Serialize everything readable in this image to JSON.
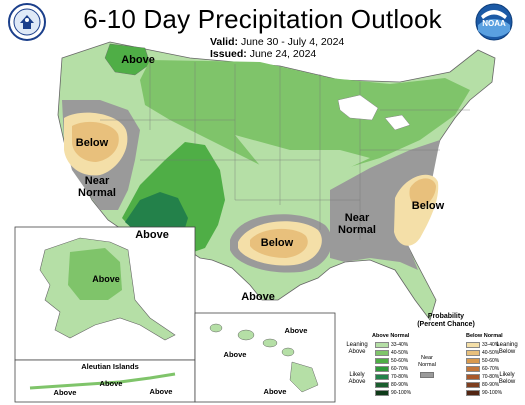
{
  "header": {
    "title": "6-10 Day Precipitation Outlook",
    "valid_label": "Valid:",
    "valid_value": "June 30 - July 4, 2024",
    "issued_label": "Issued:",
    "issued_value": "June 24, 2024",
    "noaa_text": "NOAA"
  },
  "regions": {
    "conus": [
      {
        "id": "northwest-above",
        "label": "Above",
        "category": "above_40_50"
      },
      {
        "id": "california-below",
        "label": "Below",
        "category": "below_40_50"
      },
      {
        "id": "nevada-near-normal",
        "label": "Near\nNormal",
        "category": "near_normal"
      },
      {
        "id": "southwest-above",
        "label": "Above",
        "category": "above_70_80"
      },
      {
        "id": "texas-below",
        "label": "Below",
        "category": "below_40_50"
      },
      {
        "id": "southeast-near-normal",
        "label": "Near\nNormal",
        "category": "near_normal"
      },
      {
        "id": "carolinas-below",
        "label": "Below",
        "category": "below_40_50"
      },
      {
        "id": "south-texas-above",
        "label": "Above",
        "category": "above_33_40"
      }
    ],
    "alaska": {
      "label": "Above",
      "category": "above_40_50"
    },
    "aleutian": {
      "title": "Aleutian Islands",
      "labels": [
        "Above",
        "Above",
        "Above"
      ]
    },
    "hawaii": {
      "labels": [
        "Above",
        "Above",
        "Above"
      ]
    }
  },
  "legend": {
    "title": "Probability\n(Percent Chance)",
    "above_title": "Above Normal",
    "below_title": "Below Normal",
    "near_normal_label": "Near\nNormal",
    "leaning_above": "Leaning\nAbove",
    "likely_above": "Likely\nAbove",
    "leaning_below": "Leaning\nBelow",
    "likely_below": "Likely\nBelow",
    "above_bins": [
      {
        "range": "33-40%",
        "color": "#b5dfa6"
      },
      {
        "range": "40-50%",
        "color": "#7fc46a"
      },
      {
        "range": "50-60%",
        "color": "#4fae46"
      },
      {
        "range": "60-70%",
        "color": "#2f9a3a"
      },
      {
        "range": "70-80%",
        "color": "#23814a"
      },
      {
        "range": "80-90%",
        "color": "#1a5e2e"
      },
      {
        "range": "90-100%",
        "color": "#0e3a18"
      }
    ],
    "below_bins": [
      {
        "range": "33-40%",
        "color": "#f4dfa8"
      },
      {
        "range": "40-50%",
        "color": "#e8c07c"
      },
      {
        "range": "50-60%",
        "color": "#d99a4e"
      },
      {
        "range": "60-70%",
        "color": "#c4773a"
      },
      {
        "range": "70-80%",
        "color": "#a8582a"
      },
      {
        "range": "80-90%",
        "color": "#7e3e1e"
      },
      {
        "range": "90-100%",
        "color": "#522512"
      }
    ],
    "near_normal_color": "#9a9a9a"
  },
  "colors": {
    "above_33_40": "#b5dfa6",
    "above_40_50": "#7fc46a",
    "above_50_60": "#4fae46",
    "above_70_80": "#23814a",
    "below_33_40": "#f4dfa8",
    "below_40_50": "#e8c07c",
    "near_normal": "#9a9a9a",
    "border": "#555555"
  }
}
